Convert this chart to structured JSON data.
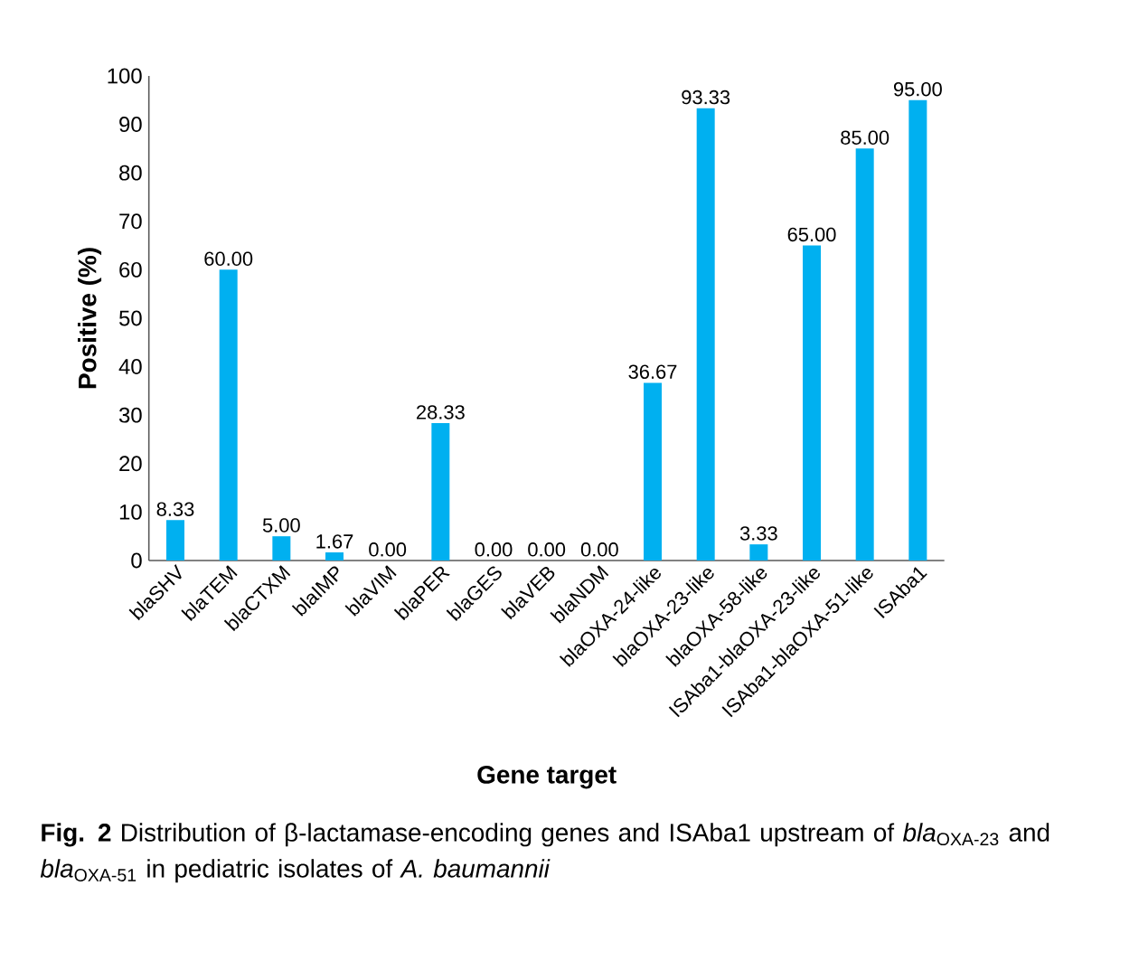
{
  "chart_data": {
    "type": "bar",
    "xlabel": "Gene target",
    "ylabel": "Positive (%)",
    "categories": [
      "blaSHV",
      "blaTEM",
      "blaCTXM",
      "blaIMP",
      "blaVIM",
      "blaPER",
      "blaGES",
      "blaVEB",
      "blaNDM",
      "blaOXA-24-like",
      "blaOXA-23-like",
      "blaOXA-58-like",
      "ISAba1-blaOXA-23-like",
      "ISAba1-blaOXA-51-like",
      "ISAba1"
    ],
    "values": [
      8.33,
      60.0,
      5.0,
      1.67,
      0.0,
      28.33,
      0.0,
      0.0,
      0.0,
      36.67,
      93.33,
      3.33,
      65.0,
      85.0,
      95.0
    ],
    "value_labels": [
      "8.33",
      "60.00",
      "5.00",
      "1.67",
      "0.00",
      "28.33",
      "0.00",
      "0.00",
      "0.00",
      "36.67",
      "93.33",
      "3.33",
      "65.00",
      "85.00",
      "95.00"
    ],
    "color": "#00b0f0",
    "ylim": [
      0,
      100
    ],
    "yticks": [
      0,
      10,
      20,
      30,
      40,
      50,
      60,
      70,
      80,
      90,
      100
    ],
    "grid": false,
    "annotations": [
      "**Fig. 2** Distribution of β-lactamase-encoding genes and ISAba1 upstream of *bla*$_{OXA-23}$ and *bla*$_{OXA-51}$ in pediatric isolates of *A. baumannii*"
    ]
  }
}
